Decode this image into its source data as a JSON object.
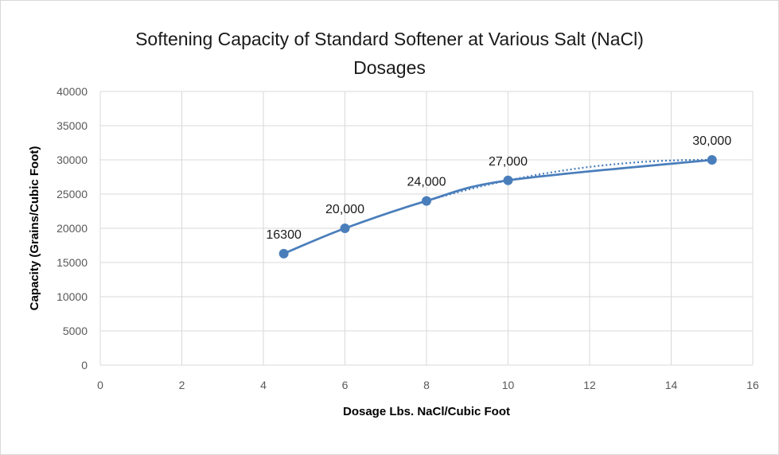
{
  "chart_data": {
    "type": "line",
    "title_lines": [
      "Softening Capacity of Standard Softener at Various Salt (NaCl)",
      "Dosages"
    ],
    "xlabel": "Dosage Lbs. NaCl/Cubic Foot",
    "ylabel": "Capacity (Grains/Cubic Foot)",
    "xlim": [
      0,
      16
    ],
    "ylim": [
      0,
      40000
    ],
    "x_ticks": [
      0,
      2,
      4,
      6,
      8,
      10,
      12,
      14,
      16
    ],
    "y_ticks": [
      0,
      5000,
      10000,
      15000,
      20000,
      25000,
      30000,
      35000,
      40000
    ],
    "grid": true,
    "legend": "none",
    "series": [
      {
        "x": [
          4.5,
          6,
          8,
          10,
          15
        ],
        "y": [
          16300,
          20000,
          24000,
          27000,
          30000
        ],
        "data_labels": [
          "16300",
          "20,000",
          "24,000",
          "27,000",
          "30,000"
        ],
        "smooth": true,
        "markers": true,
        "color": "#4a7ebb"
      }
    ],
    "trendline": {
      "style": "dotted",
      "x_range": [
        8,
        15
      ],
      "color": "#4a7ebb"
    }
  }
}
